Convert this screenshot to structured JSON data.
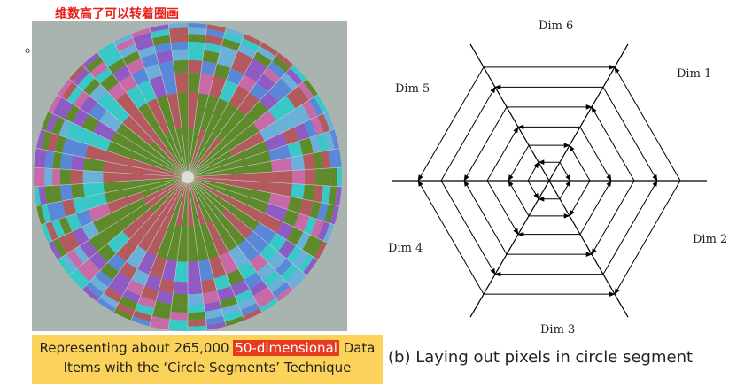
{
  "top_note": "维数高了可以转着圈画",
  "marker": "o",
  "caption_a": {
    "part1": "Representing about 265,000 ",
    "highlight": "50-dimensional",
    "part2": " Data",
    "line2": "Items  with the ‘Circle Segments’ Technique"
  },
  "caption_b": "(b) Laying out pixels in circle segment",
  "diagram": {
    "labels": {
      "dim1": "Dim 1",
      "dim2": "Dim 2",
      "dim3": "Dim 3",
      "dim4": "Dim 4",
      "dim5": "Dim 5",
      "dim6": "Dim 6"
    }
  },
  "colors": {
    "panel_bg": "#a9b3b0",
    "caption_bg": "#fbd35a",
    "highlight": "#e83a1e",
    "note": "#e8201c",
    "green": "#5e8a2c",
    "red": "#b35a5e",
    "purple": "#8e5bc4",
    "cyan": "#38c8c8",
    "blue": "#5a88d8"
  }
}
